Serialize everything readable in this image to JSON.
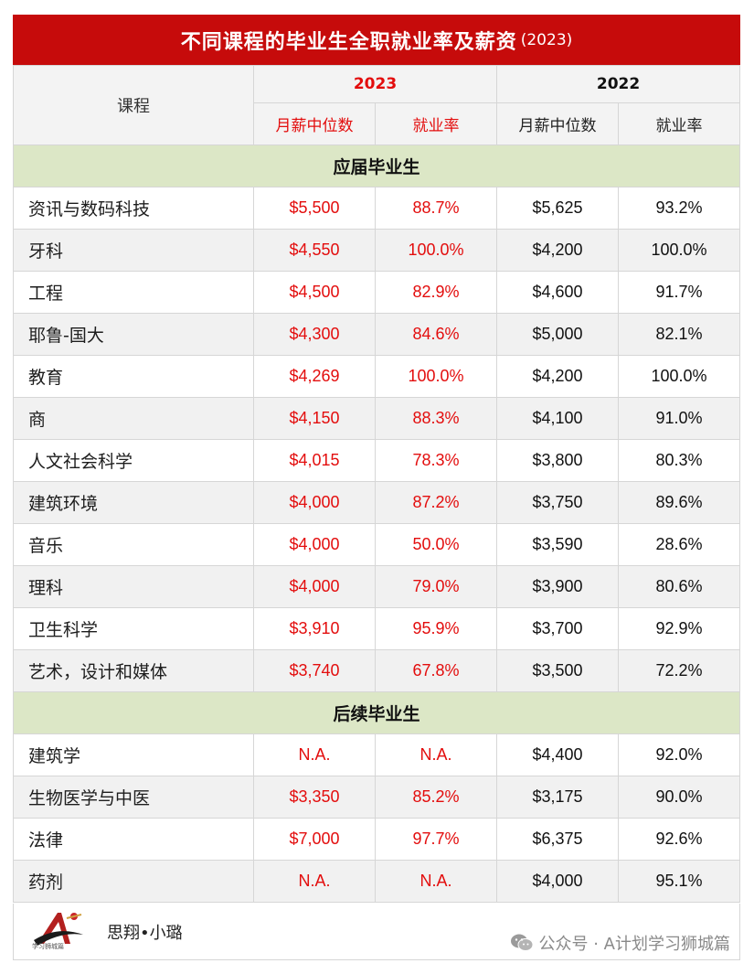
{
  "title": {
    "main": "不同课程的毕业生全职就业率及薪资",
    "year": "(2023)"
  },
  "header": {
    "course_label": "课程",
    "years": [
      "2023",
      "2022"
    ],
    "sub_labels": [
      "月薪中位数",
      "就业率",
      "月薪中位数",
      "就业率"
    ]
  },
  "sections": [
    {
      "title": "应届毕业生",
      "rows": [
        {
          "course": "资讯与数码科技",
          "salary_2023": "$5,500",
          "rate_2023": "88.7%",
          "salary_2022": "$5,625",
          "rate_2022": "93.2%"
        },
        {
          "course": "牙科",
          "salary_2023": "$4,550",
          "rate_2023": "100.0%",
          "salary_2022": "$4,200",
          "rate_2022": "100.0%"
        },
        {
          "course": "工程",
          "salary_2023": "$4,500",
          "rate_2023": "82.9%",
          "salary_2022": "$4,600",
          "rate_2022": "91.7%"
        },
        {
          "course": "耶鲁-国大",
          "salary_2023": "$4,300",
          "rate_2023": "84.6%",
          "salary_2022": "$5,000",
          "rate_2022": "82.1%"
        },
        {
          "course": "教育",
          "salary_2023": "$4,269",
          "rate_2023": "100.0%",
          "salary_2022": "$4,200",
          "rate_2022": "100.0%"
        },
        {
          "course": "商",
          "salary_2023": "$4,150",
          "rate_2023": "88.3%",
          "salary_2022": "$4,100",
          "rate_2022": "91.0%"
        },
        {
          "course": "人文社会科学",
          "salary_2023": "$4,015",
          "rate_2023": "78.3%",
          "salary_2022": "$3,800",
          "rate_2022": "80.3%"
        },
        {
          "course": "建筑环境",
          "salary_2023": "$4,000",
          "rate_2023": "87.2%",
          "salary_2022": "$3,750",
          "rate_2022": "89.6%"
        },
        {
          "course": "音乐",
          "salary_2023": "$4,000",
          "rate_2023": "50.0%",
          "salary_2022": "$3,590",
          "rate_2022": "28.6%"
        },
        {
          "course": "理科",
          "salary_2023": "$4,000",
          "rate_2023": "79.0%",
          "salary_2022": "$3,900",
          "rate_2022": "80.6%"
        },
        {
          "course": "卫生科学",
          "salary_2023": "$3,910",
          "rate_2023": "95.9%",
          "salary_2022": "$3,700",
          "rate_2022": "92.9%"
        },
        {
          "course": "艺术，设计和媒体",
          "salary_2023": "$3,740",
          "rate_2023": "67.8%",
          "salary_2022": "$3,500",
          "rate_2022": "72.2%"
        }
      ]
    },
    {
      "title": "后续毕业生",
      "rows": [
        {
          "course": "建筑学",
          "salary_2023": "N.A.",
          "rate_2023": "N.A.",
          "salary_2022": "$4,400",
          "rate_2022": "92.0%"
        },
        {
          "course": "生物医学与中医",
          "salary_2023": "$3,350",
          "rate_2023": "85.2%",
          "salary_2022": "$3,175",
          "rate_2022": "90.0%"
        },
        {
          "course": "法律",
          "salary_2023": "$7,000",
          "rate_2023": "97.7%",
          "salary_2022": "$6,375",
          "rate_2022": "92.6%"
        },
        {
          "course": "药剂",
          "salary_2023": "N.A.",
          "rate_2023": "N.A.",
          "salary_2022": "$4,000",
          "rate_2022": "95.1%"
        }
      ]
    }
  ],
  "footer": {
    "logo_text": "学习狮城篇",
    "author": "思翔•小璐",
    "wechat": "公众号 · A计划学习狮城篇",
    "logo_icon": "a-plan-logo-icon",
    "wechat_icon": "wechat-icon"
  },
  "colors": {
    "title_bg": "#c60b0b",
    "accent_red": "#e30d0d",
    "section_bg": "#dce7c6",
    "stripe": "#f1f1f1"
  }
}
